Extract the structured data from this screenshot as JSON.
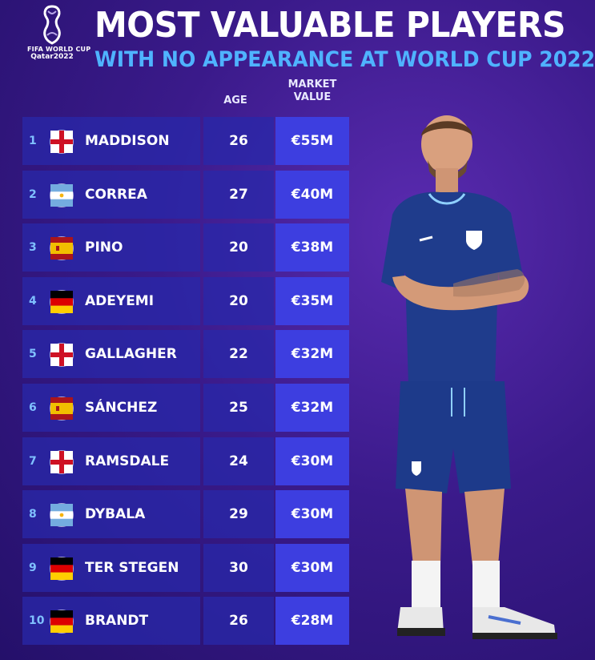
{
  "logo": {
    "line1": "FIFA WORLD CUP",
    "line2": "Qatar2022"
  },
  "header": {
    "title": "MOST VALUABLE PLAYERS",
    "subtitle": "WITH NO APPEARANCE AT WORLD CUP 2022"
  },
  "columns": {
    "age": "AGE",
    "market_value_line1": "MARKET",
    "market_value_line2": "VALUE"
  },
  "players": [
    {
      "rank": "1",
      "name": "MADDISON",
      "country": "england",
      "age": "26",
      "value": "€55M"
    },
    {
      "rank": "2",
      "name": "CORREA",
      "country": "argentina",
      "age": "27",
      "value": "€40M"
    },
    {
      "rank": "3",
      "name": "PINO",
      "country": "spain",
      "age": "20",
      "value": "€38M"
    },
    {
      "rank": "4",
      "name": "ADEYEMI",
      "country": "germany",
      "age": "20",
      "value": "€35M"
    },
    {
      "rank": "5",
      "name": "GALLAGHER",
      "country": "england",
      "age": "22",
      "value": "€32M"
    },
    {
      "rank": "6",
      "name": "SÁNCHEZ",
      "country": "spain",
      "age": "25",
      "value": "€32M"
    },
    {
      "rank": "7",
      "name": "RAMSDALE",
      "country": "england",
      "age": "24",
      "value": "€30M"
    },
    {
      "rank": "8",
      "name": "DYBALA",
      "country": "argentina",
      "age": "29",
      "value": "€30M"
    },
    {
      "rank": "9",
      "name": "TER STEGEN",
      "country": "germany",
      "age": "30",
      "value": "€30M"
    },
    {
      "rank": "10",
      "name": "BRANDT",
      "country": "germany",
      "age": "26",
      "value": "€28M"
    }
  ],
  "colors": {
    "accent": "#4fb3ff",
    "value_cell": "#3d3ee0",
    "row_cell": "#2828aa"
  }
}
